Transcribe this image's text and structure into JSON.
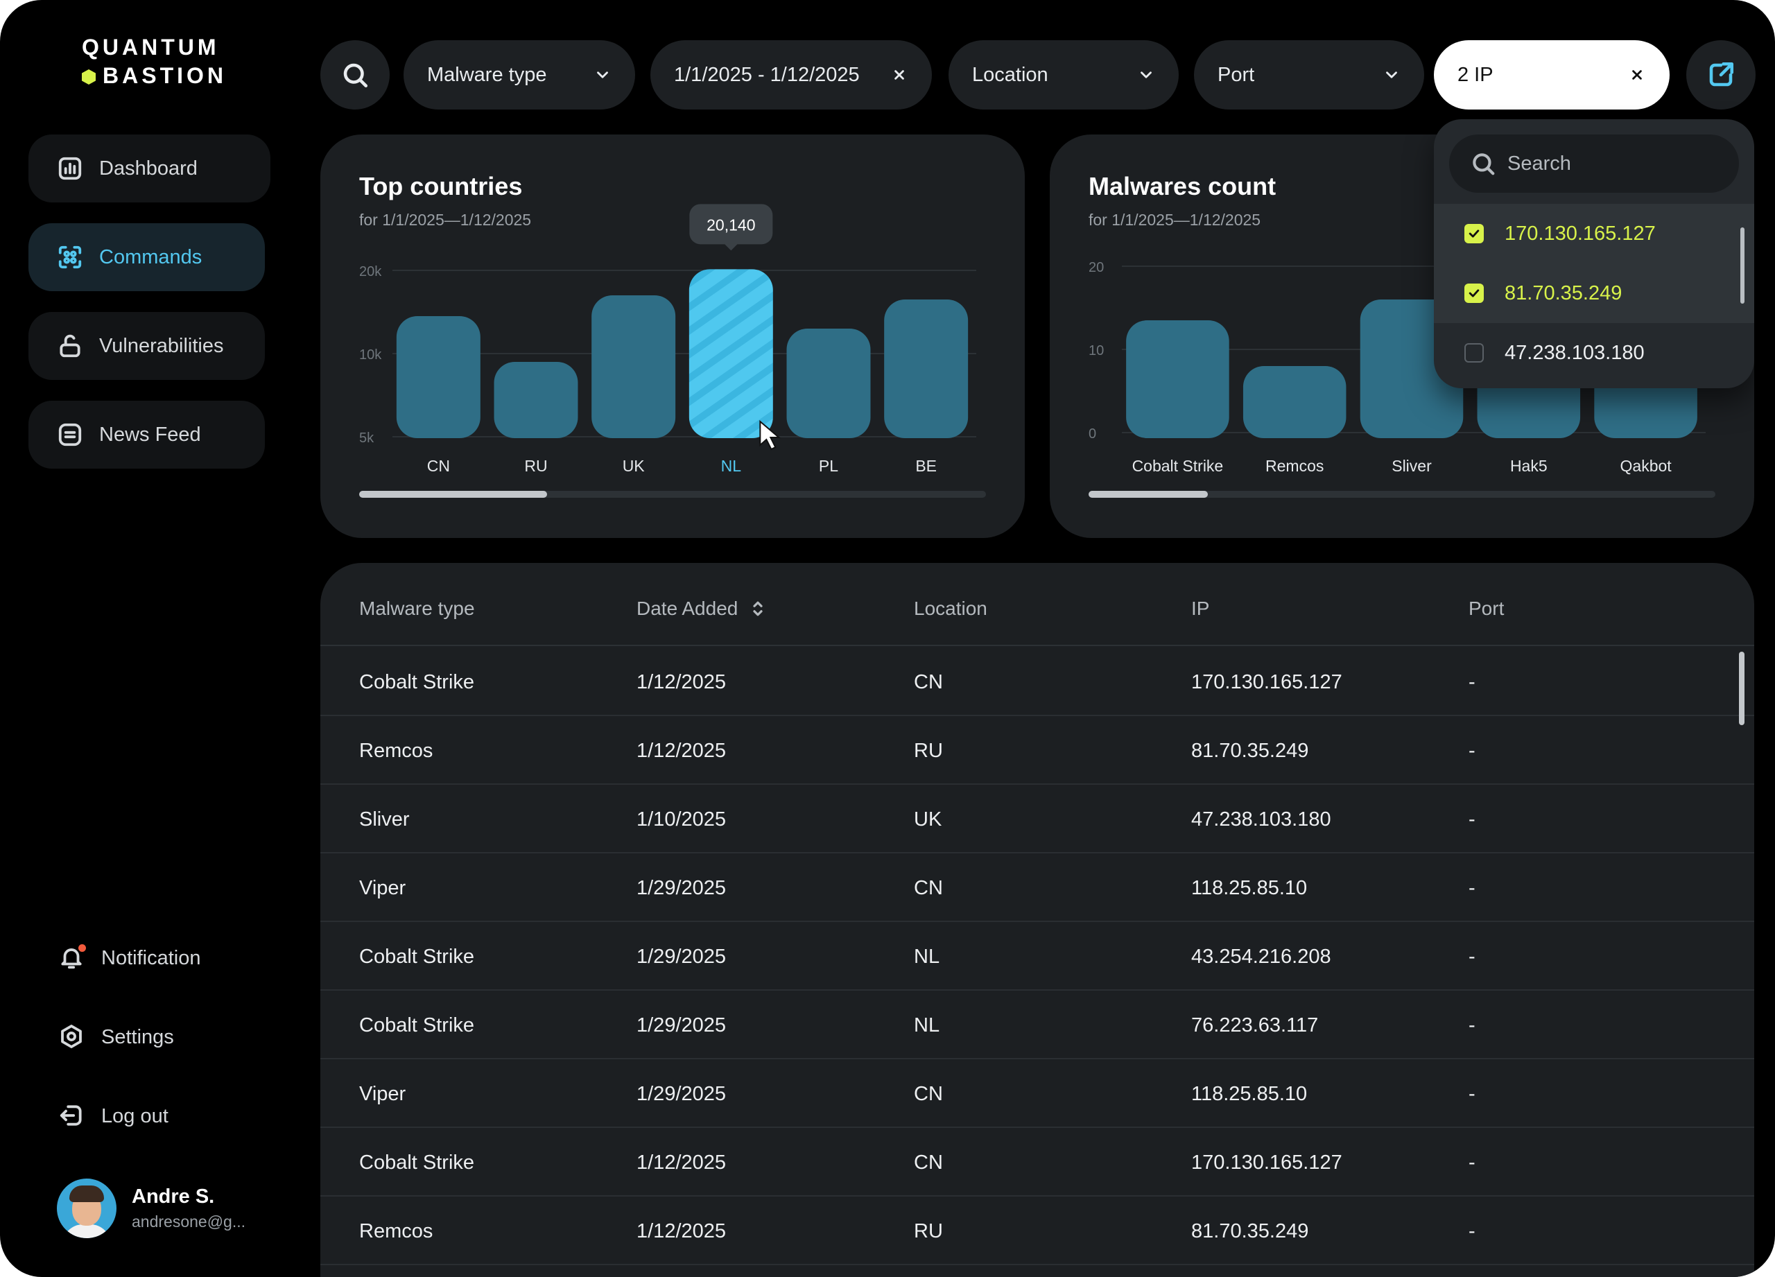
{
  "brand": {
    "line1": "QUANTUM",
    "line2": "BASTION",
    "accent": "#d8f24a"
  },
  "sidebar": {
    "items": [
      {
        "label": "Dashboard",
        "icon": "bar-chart-icon"
      },
      {
        "label": "Commands",
        "icon": "command-icon"
      },
      {
        "label": "Vulnerabilities",
        "icon": "lock-open-icon"
      },
      {
        "label": "News Feed",
        "icon": "news-icon"
      }
    ],
    "active": "Commands",
    "utility": [
      {
        "label": "Notification",
        "icon": "bell-icon"
      },
      {
        "label": "Settings",
        "icon": "gear-icon"
      },
      {
        "label": "Log out",
        "icon": "logout-icon"
      }
    ],
    "user": {
      "name": "Andre S.",
      "email": "andresone@g..."
    }
  },
  "filters": {
    "malware_type": "Malware type",
    "date_range": "1/1/2025 - 1/12/2025",
    "location": "Location",
    "port": "Port",
    "ip": "2 IP"
  },
  "ip_dropdown": {
    "search_placeholder": "Search",
    "options": [
      {
        "label": "170.130.165.127",
        "checked": true
      },
      {
        "label": "81.70.35.249",
        "checked": true
      },
      {
        "label": "47.238.103.180",
        "checked": false
      }
    ]
  },
  "charts": {
    "countries": {
      "title": "Top countries",
      "subtitle": "for 1/1/2025—1/12/2025",
      "tooltip": "20,140",
      "highlight": "NL",
      "scroll_fraction": 0.3
    },
    "malwares": {
      "title": "Malwares count",
      "subtitle": "for 1/1/2025—1/12/2025",
      "scroll_fraction": 0.19
    }
  },
  "chart_data": [
    {
      "type": "bar",
      "title": "Top countries",
      "subtitle": "for 1/1/2025—1/12/2025",
      "categories": [
        "CN",
        "RU",
        "UK",
        "NL",
        "PL",
        "BE"
      ],
      "values": [
        14500,
        9500,
        17000,
        20140,
        13000,
        16500
      ],
      "yticks": [
        "5k",
        "10k",
        "20k"
      ],
      "ytick_values": [
        5000,
        10000,
        20000
      ],
      "ylim": [
        5000,
        20140
      ],
      "xlabel": "",
      "ylabel": "",
      "grid": true,
      "highlight": "NL"
    },
    {
      "type": "bar",
      "title": "Malwares count",
      "subtitle": "for 1/1/2025—1/12/2025",
      "categories": [
        "Cobalt Strike",
        "Remcos",
        "Sliver",
        "Hak5",
        "Qakbot"
      ],
      "values": [
        13.5,
        8,
        16,
        16,
        16
      ],
      "yticks": [
        "0",
        "10",
        "20"
      ],
      "ytick_values": [
        0,
        10,
        20
      ],
      "ylim": [
        0,
        20
      ],
      "xlabel": "",
      "ylabel": "",
      "grid": true
    }
  ],
  "table": {
    "columns": [
      "Malware type",
      "Date Added",
      "Location",
      "IP",
      "Port"
    ],
    "sortable_column": "Date Added",
    "rows": [
      [
        "Cobalt Strike",
        "1/12/2025",
        "CN",
        "170.130.165.127",
        "-"
      ],
      [
        "Remcos",
        "1/12/2025",
        "RU",
        "81.70.35.249",
        "-"
      ],
      [
        "Sliver",
        "1/10/2025",
        "UK",
        "47.238.103.180",
        "-"
      ],
      [
        "Viper",
        "1/29/2025",
        "CN",
        "118.25.85.10",
        "-"
      ],
      [
        "Cobalt Strike",
        "1/29/2025",
        "NL",
        "43.254.216.208",
        "-"
      ],
      [
        "Cobalt Strike",
        "1/29/2025",
        "NL",
        "76.223.63.117",
        "-"
      ],
      [
        "Viper",
        "1/29/2025",
        "CN",
        "118.25.85.10",
        "-"
      ],
      [
        "Cobalt Strike",
        "1/12/2025",
        "CN",
        "170.130.165.127",
        "-"
      ],
      [
        "Remcos",
        "1/12/2025",
        "RU",
        "81.70.35.249",
        "-"
      ]
    ]
  },
  "colors": {
    "background": "#000000",
    "panel": "#1c1f22",
    "bar": "#2f6e86",
    "bar_highlight": "#4fc8ef",
    "accent_blue": "#53c8f0",
    "accent_lime": "#d8f24a"
  }
}
